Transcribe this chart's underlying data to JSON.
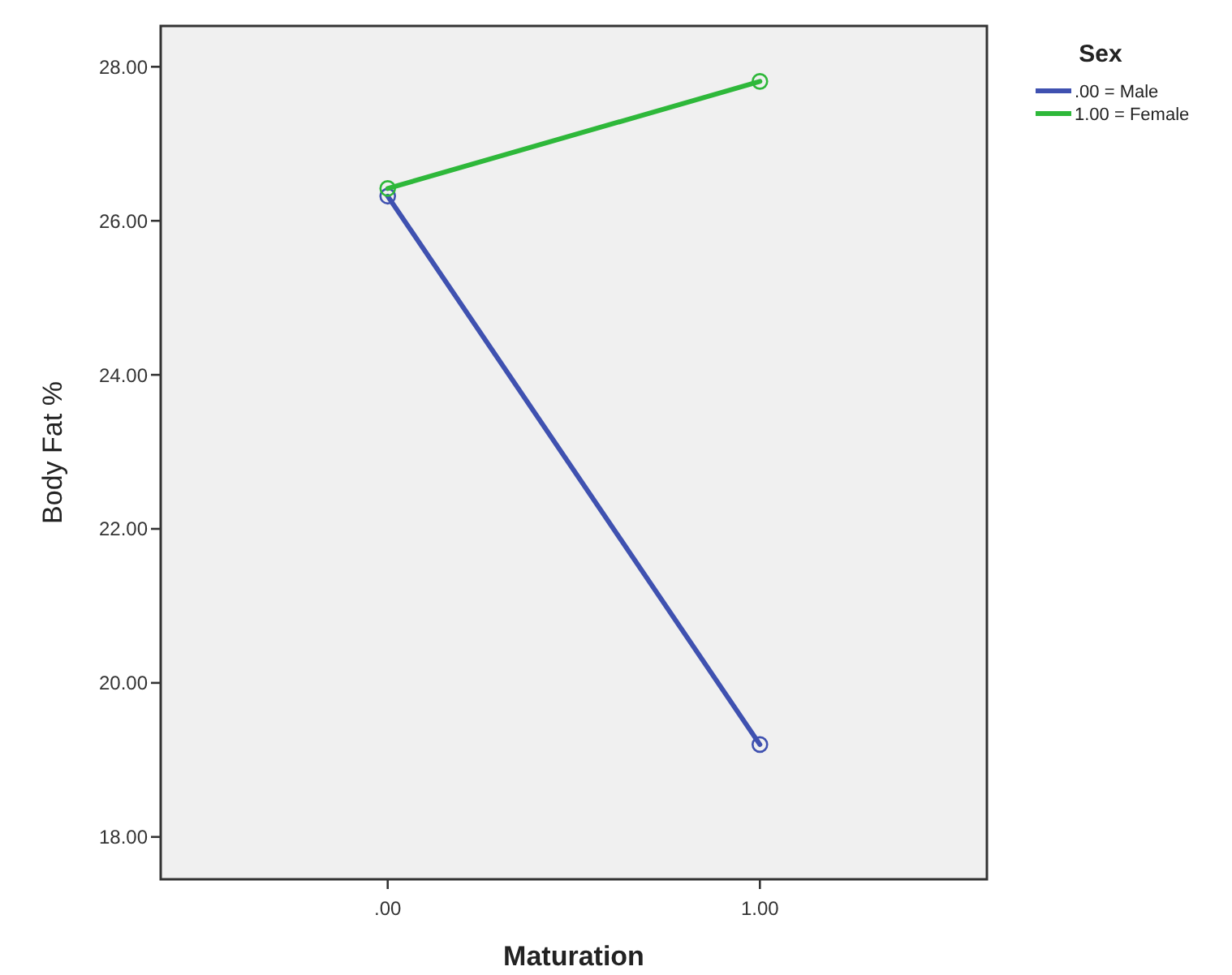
{
  "chart_data": {
    "type": "line",
    "xlabel": "Maturation",
    "ylabel": "Body Fat %",
    "legend_title": "Sex",
    "legend": "top right",
    "marker": "circle",
    "grid": false,
    "x": [
      0,
      1
    ],
    "xlim": [
      -0.61,
      1.61
    ],
    "xticks": [
      {
        "value": 0,
        "label": ".00"
      },
      {
        "value": 1,
        "label": "1.00"
      }
    ],
    "ylim": [
      17.45,
      28.53
    ],
    "yticks": [
      {
        "value": 18,
        "label": "18.00"
      },
      {
        "value": 20,
        "label": "20.00"
      },
      {
        "value": 22,
        "label": "22.00"
      },
      {
        "value": 24,
        "label": "24.00"
      },
      {
        "value": 26,
        "label": "26.00"
      },
      {
        "value": 28,
        "label": "28.00"
      }
    ],
    "series": [
      {
        "name": ".00 = Male",
        "color": "#3f51b0",
        "values": [
          26.32,
          19.2
        ]
      },
      {
        "name": "1.00 = Female",
        "color": "#2eb83a",
        "values": [
          26.42,
          27.81
        ]
      }
    ]
  }
}
